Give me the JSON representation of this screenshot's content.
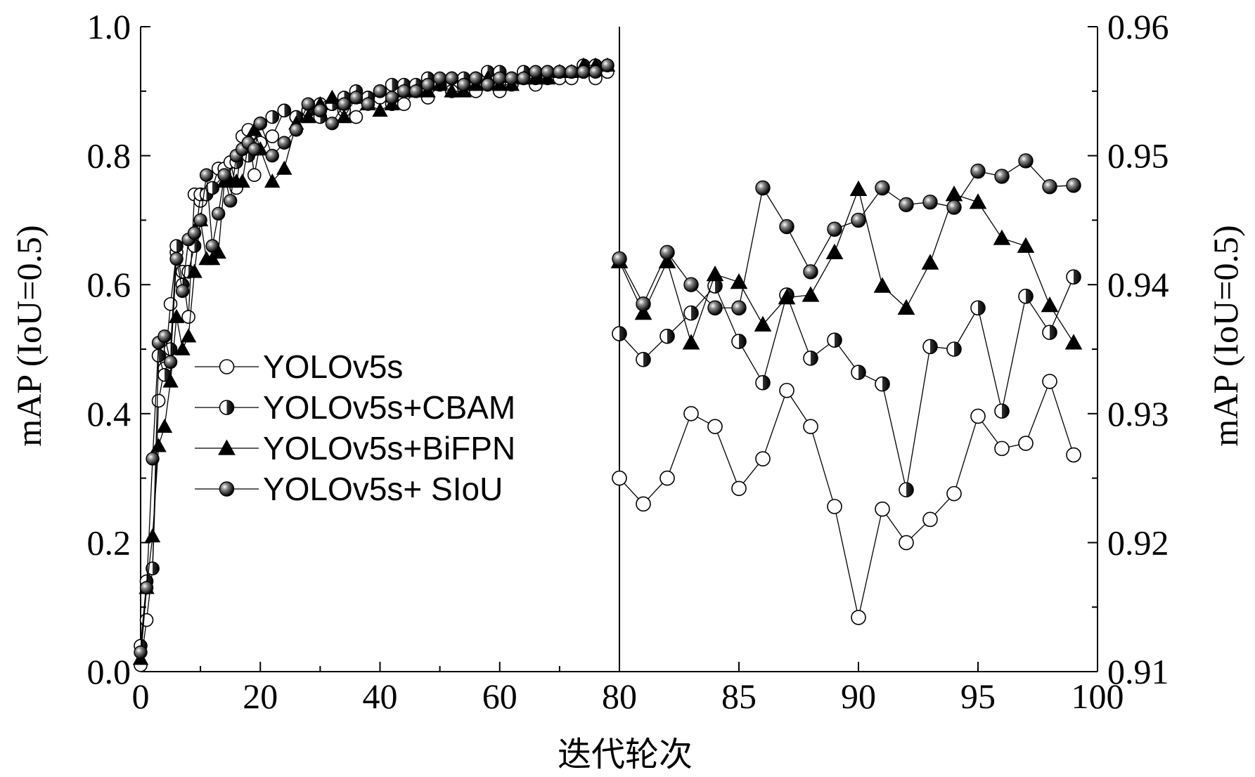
{
  "chart_data": {
    "type": "line",
    "xlabel": "迭代轮次",
    "ylabel_left": "mAP (IoU=0.5)",
    "ylabel_right": "mAP (IoU=0.5)",
    "grid": false,
    "legend_position": "center-left",
    "legend": [
      "YOLOv5s",
      "YOLOv5s+CBAM",
      "YOLOv5s+BiFPN",
      "YOLOv5s+ SIoU"
    ],
    "x_ticks": [
      "0",
      "20",
      "40",
      "60",
      "80",
      "85",
      "90",
      "95",
      "100"
    ],
    "y_left_ticks": [
      "0.0",
      "0.2",
      "0.4",
      "0.6",
      "0.8",
      "1.0"
    ],
    "y_right_ticks": [
      "0.91",
      "0.92",
      "0.93",
      "0.94",
      "0.95",
      "0.96"
    ],
    "panels": [
      {
        "name": "left",
        "x_range": [
          0,
          80
        ],
        "y_range": [
          0,
          1.0
        ],
        "y_axis": "left"
      },
      {
        "name": "right",
        "x_range": [
          80,
          100
        ],
        "y_range": [
          0.91,
          0.96
        ],
        "y_axis": "right"
      }
    ],
    "series": [
      {
        "name": "YOLOv5s",
        "marker": "open-circle",
        "left_x": [
          0,
          1,
          2,
          3,
          4,
          5,
          6,
          7,
          8,
          9,
          10,
          11,
          12,
          13,
          14,
          15,
          16,
          17,
          18,
          19,
          20,
          22,
          24,
          26,
          28,
          30,
          32,
          34,
          36,
          38,
          40,
          42,
          44,
          46,
          48,
          50,
          52,
          54,
          56,
          58,
          60,
          62,
          64,
          66,
          68,
          70,
          72,
          74,
          76,
          78
        ],
        "left_y": [
          0.01,
          0.08,
          0.16,
          0.42,
          0.47,
          0.57,
          0.65,
          0.62,
          0.55,
          0.74,
          0.73,
          0.74,
          0.75,
          0.78,
          0.78,
          0.79,
          0.75,
          0.83,
          0.84,
          0.77,
          0.82,
          0.83,
          0.87,
          0.86,
          0.87,
          0.88,
          0.88,
          0.87,
          0.86,
          0.89,
          0.89,
          0.88,
          0.88,
          0.9,
          0.89,
          0.91,
          0.9,
          0.91,
          0.9,
          0.91,
          0.9,
          0.91,
          0.92,
          0.91,
          0.92,
          0.92,
          0.92,
          0.93,
          0.92,
          0.93
        ],
        "right_x": [
          80,
          81,
          82,
          83,
          84,
          85,
          86,
          87,
          88,
          89,
          90,
          91,
          92,
          93,
          94,
          95,
          96,
          97,
          98,
          99
        ],
        "right_y": [
          0.925,
          0.923,
          0.925,
          0.93,
          0.929,
          0.9242,
          0.9265,
          0.9318,
          0.929,
          0.9228,
          0.9142,
          0.9226,
          0.92,
          0.9218,
          0.9238,
          0.9298,
          0.9273,
          0.9277,
          0.9325,
          0.9268
        ]
      },
      {
        "name": "YOLOv5s+CBAM",
        "marker": "half-filled-circle",
        "left_x": [
          0,
          1,
          2,
          3,
          4,
          5,
          6,
          7,
          8,
          9,
          10,
          11,
          12,
          14,
          16,
          18,
          20,
          22,
          24,
          26,
          28,
          30,
          32,
          34,
          36,
          38,
          40,
          42,
          44,
          46,
          48,
          50,
          52,
          54,
          56,
          58,
          60,
          62,
          64,
          66,
          68,
          70,
          72,
          74,
          76,
          78
        ],
        "left_y": [
          0.04,
          0.14,
          0.16,
          0.49,
          0.46,
          0.5,
          0.66,
          0.6,
          0.62,
          0.66,
          0.74,
          0.74,
          0.75,
          0.77,
          0.79,
          0.8,
          0.85,
          0.86,
          0.87,
          0.86,
          0.87,
          0.86,
          0.88,
          0.89,
          0.9,
          0.89,
          0.9,
          0.91,
          0.91,
          0.91,
          0.92,
          0.91,
          0.92,
          0.92,
          0.92,
          0.93,
          0.93,
          0.92,
          0.93,
          0.92,
          0.93,
          0.93,
          0.93,
          0.94,
          0.94,
          0.94
        ],
        "right_x": [
          80,
          81,
          82,
          83,
          84,
          85,
          86,
          87,
          88,
          89,
          90,
          91,
          92,
          93,
          94,
          95,
          96,
          97,
          98,
          99
        ],
        "right_y": [
          0.9362,
          0.9342,
          0.936,
          0.9378,
          0.9399,
          0.9356,
          0.9324,
          0.9392,
          0.9343,
          0.9357,
          0.9332,
          0.9323,
          0.9241,
          0.9352,
          0.935,
          0.9382,
          0.9302,
          0.9391,
          0.9363,
          0.9406
        ]
      },
      {
        "name": "YOLOv5s+BiFPN",
        "marker": "filled-triangle",
        "left_x": [
          0,
          1,
          2,
          3,
          4,
          5,
          6,
          7,
          8,
          9,
          10,
          11,
          12,
          13,
          14,
          15,
          16,
          17,
          18,
          19,
          20,
          22,
          24,
          26,
          28,
          30,
          32,
          34,
          36,
          38,
          40,
          42,
          44,
          46,
          48,
          50,
          52,
          54,
          56,
          58,
          60,
          62,
          64,
          66,
          68,
          70,
          72,
          74,
          76,
          78
        ],
        "left_y": [
          0.02,
          0.13,
          0.21,
          0.35,
          0.38,
          0.45,
          0.55,
          0.5,
          0.52,
          0.62,
          0.7,
          0.64,
          0.64,
          0.65,
          0.76,
          0.76,
          0.76,
          0.76,
          0.82,
          0.84,
          0.81,
          0.76,
          0.78,
          0.85,
          0.86,
          0.88,
          0.89,
          0.86,
          0.89,
          0.88,
          0.87,
          0.88,
          0.9,
          0.9,
          0.9,
          0.91,
          0.9,
          0.9,
          0.91,
          0.92,
          0.91,
          0.91,
          0.92,
          0.92,
          0.92,
          0.93,
          0.93,
          0.94,
          0.94,
          0.94
        ],
        "right_x": [
          80,
          81,
          82,
          83,
          84,
          85,
          86,
          87,
          88,
          89,
          90,
          91,
          92,
          93,
          94,
          95,
          96,
          97,
          98,
          99
        ],
        "right_y": [
          0.9418,
          0.9378,
          0.9418,
          0.9355,
          0.9408,
          0.9402,
          0.9369,
          0.939,
          0.9392,
          0.9425,
          0.9474,
          0.9399,
          0.9382,
          0.9417,
          0.947,
          0.9464,
          0.9436,
          0.943,
          0.9384,
          0.9355
        ]
      },
      {
        "name": "YOLOv5s+ SIoU",
        "marker": "filled-circle",
        "left_x": [
          0,
          1,
          2,
          3,
          4,
          5,
          6,
          7,
          8,
          9,
          10,
          11,
          12,
          13,
          14,
          15,
          16,
          17,
          18,
          19,
          20,
          22,
          24,
          26,
          28,
          30,
          32,
          34,
          36,
          38,
          40,
          42,
          44,
          46,
          48,
          50,
          52,
          54,
          56,
          58,
          60,
          62,
          64,
          66,
          68,
          70,
          72,
          74,
          76,
          78
        ],
        "left_y": [
          0.03,
          0.13,
          0.33,
          0.51,
          0.52,
          0.48,
          0.64,
          0.59,
          0.67,
          0.68,
          0.7,
          0.77,
          0.66,
          0.71,
          0.77,
          0.73,
          0.8,
          0.81,
          0.82,
          0.81,
          0.85,
          0.8,
          0.82,
          0.84,
          0.88,
          0.87,
          0.85,
          0.88,
          0.89,
          0.88,
          0.9,
          0.89,
          0.9,
          0.9,
          0.91,
          0.92,
          0.92,
          0.91,
          0.92,
          0.91,
          0.92,
          0.92,
          0.92,
          0.93,
          0.93,
          0.93,
          0.93,
          0.93,
          0.93,
          0.94
        ],
        "right_x": [
          80,
          81,
          82,
          83,
          84,
          85,
          86,
          87,
          88,
          89,
          90,
          91,
          92,
          93,
          94,
          95,
          96,
          97,
          98,
          99
        ],
        "right_y": [
          0.942,
          0.9385,
          0.9425,
          0.94,
          0.9382,
          0.9382,
          0.9475,
          0.9445,
          0.941,
          0.9443,
          0.945,
          0.9475,
          0.9462,
          0.9464,
          0.946,
          0.9488,
          0.9484,
          0.9496,
          0.9476,
          0.9477
        ]
      }
    ]
  }
}
